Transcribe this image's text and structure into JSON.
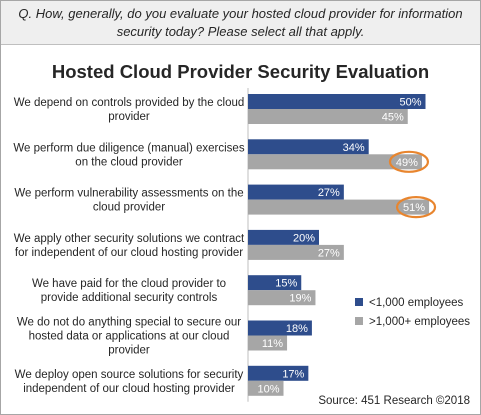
{
  "question": "Q. How, generally, do you evaluate your hosted cloud provider for information security today? Please select all that apply.",
  "source": "Source: 451 Research ©2018",
  "colors": {
    "series1": "#2e4d8c",
    "series2": "#a6a6a6",
    "highlight": "#e8852e"
  },
  "chart_data": {
    "type": "bar",
    "orientation": "horizontal",
    "title": "Hosted Cloud Provider Security Evaluation",
    "xlabel": "",
    "ylabel": "",
    "xlim": [
      0,
      52
    ],
    "grid": false,
    "legend_position": "right",
    "categories": [
      "We depend on controls provided by the cloud provider",
      "We perform due diligence (manual) exercises on the cloud provider",
      "We perform vulnerability assessments on the cloud provider",
      "We apply other security solutions we contract for independent of our cloud hosting provider",
      "We have paid for the cloud provider to provide additional security controls",
      "We do not do anything special to secure our hosted data or applications at our cloud provider",
      "We deploy open source solutions for security independent of our cloud hosting provider"
    ],
    "category_lines": [
      [
        "We depend on controls provided by the cloud",
        "provider"
      ],
      [
        "We perform due diligence (manual) exercises",
        "on the cloud provider"
      ],
      [
        "We perform vulnerability assessments on the",
        "cloud provider"
      ],
      [
        "We apply other security solutions we contract",
        "for independent of our cloud hosting provider"
      ],
      [
        "We have paid for the cloud provider to",
        "provide additional security controls"
      ],
      [
        "We do not do anything special to secure our",
        "hosted data or applications at our cloud",
        "provider"
      ],
      [
        "We deploy open source solutions for security",
        "independent of our cloud hosting provider"
      ]
    ],
    "series": [
      {
        "name": "<1,000 employees",
        "values": [
          50,
          34,
          27,
          20,
          15,
          18,
          17
        ],
        "labels": [
          "50%",
          "34%",
          "27%",
          "20%",
          "15%",
          "18%",
          "17%"
        ]
      },
      {
        "name": ">1,000+ employees",
        "values": [
          45,
          49,
          51,
          27,
          19,
          11,
          10
        ],
        "labels": [
          "45%",
          "49%",
          "51%",
          "27%",
          "19%",
          "11%",
          "10%"
        ]
      }
    ],
    "annotations": [
      {
        "type": "circle",
        "series": 1,
        "category_index": 1
      },
      {
        "type": "circle",
        "series": 1,
        "category_index": 2
      }
    ]
  }
}
